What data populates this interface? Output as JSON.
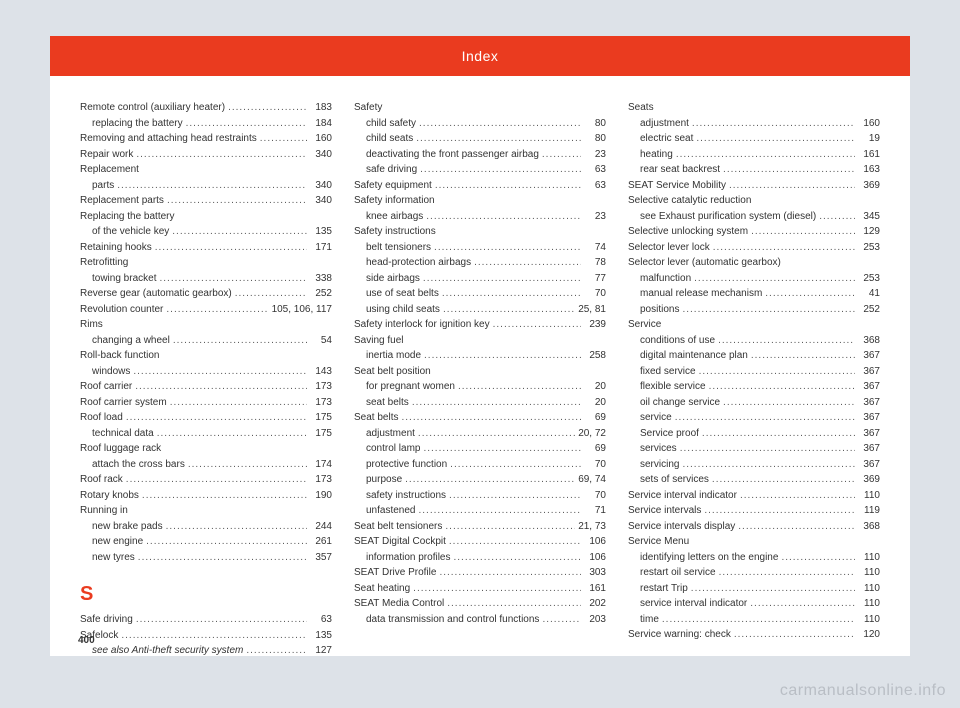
{
  "header": {
    "title": "Index"
  },
  "pagenum": "400",
  "watermark": "carmanualsonline.info",
  "section_s": "S",
  "columns": [
    [
      {
        "t": "e",
        "l": "Remote control (auxiliary heater)",
        "p": "183"
      },
      {
        "t": "s",
        "l": "replacing the battery",
        "p": "184"
      },
      {
        "t": "e",
        "l": "Removing and attaching head restraints",
        "p": "160"
      },
      {
        "t": "e",
        "l": "Repair work",
        "p": "340"
      },
      {
        "t": "h",
        "l": "Replacement"
      },
      {
        "t": "s",
        "l": "parts",
        "p": "340"
      },
      {
        "t": "e",
        "l": "Replacement parts",
        "p": "340"
      },
      {
        "t": "h",
        "l": "Replacing the battery"
      },
      {
        "t": "s",
        "l": "of the vehicle key",
        "p": "135"
      },
      {
        "t": "e",
        "l": "Retaining hooks",
        "p": "171"
      },
      {
        "t": "h",
        "l": "Retrofitting"
      },
      {
        "t": "s",
        "l": "towing bracket",
        "p": "338"
      },
      {
        "t": "e",
        "l": "Reverse gear (automatic gearbox)",
        "p": "252"
      },
      {
        "t": "e",
        "l": "Revolution counter",
        "p": "105, 106, 117"
      },
      {
        "t": "h",
        "l": "Rims"
      },
      {
        "t": "s",
        "l": "changing a wheel",
        "p": "54"
      },
      {
        "t": "h",
        "l": "Roll-back function"
      },
      {
        "t": "s",
        "l": "windows",
        "p": "143"
      },
      {
        "t": "e",
        "l": "Roof carrier",
        "p": "173"
      },
      {
        "t": "e",
        "l": "Roof carrier system",
        "p": "173"
      },
      {
        "t": "e",
        "l": "Roof load",
        "p": "175"
      },
      {
        "t": "s",
        "l": "technical data",
        "p": "175"
      },
      {
        "t": "h",
        "l": "Roof luggage rack"
      },
      {
        "t": "s",
        "l": "attach the cross bars",
        "p": "174"
      },
      {
        "t": "e",
        "l": "Roof rack",
        "p": "173"
      },
      {
        "t": "e",
        "l": "Rotary knobs",
        "p": "190"
      },
      {
        "t": "h",
        "l": "Running in"
      },
      {
        "t": "s",
        "l": "new brake pads",
        "p": "244"
      },
      {
        "t": "s",
        "l": "new engine",
        "p": "261"
      },
      {
        "t": "s",
        "l": "new tyres",
        "p": "357"
      },
      {
        "t": "sec"
      },
      {
        "t": "e",
        "l": "Safe driving",
        "p": "63"
      },
      {
        "t": "e",
        "l": "Safelock",
        "p": "135"
      },
      {
        "t": "si",
        "l": "see also Anti-theft security system",
        "p": "127"
      }
    ],
    [
      {
        "t": "h",
        "l": "Safety"
      },
      {
        "t": "s",
        "l": "child safety",
        "p": "80"
      },
      {
        "t": "s",
        "l": "child seats",
        "p": "80"
      },
      {
        "t": "s",
        "l": "deactivating the front passenger airbag",
        "p": "23"
      },
      {
        "t": "s",
        "l": "safe driving",
        "p": "63"
      },
      {
        "t": "e",
        "l": "Safety equipment",
        "p": "63"
      },
      {
        "t": "h",
        "l": "Safety information"
      },
      {
        "t": "s",
        "l": "knee airbags",
        "p": "23"
      },
      {
        "t": "h",
        "l": "Safety instructions"
      },
      {
        "t": "s",
        "l": "belt tensioners",
        "p": "74"
      },
      {
        "t": "s",
        "l": "head-protection airbags",
        "p": "78"
      },
      {
        "t": "s",
        "l": "side airbags",
        "p": "77"
      },
      {
        "t": "s",
        "l": "use of seat belts",
        "p": "70"
      },
      {
        "t": "s",
        "l": "using child seats",
        "p": "25, 81"
      },
      {
        "t": "e",
        "l": "Safety interlock for ignition key",
        "p": "239"
      },
      {
        "t": "h",
        "l": "Saving fuel"
      },
      {
        "t": "s",
        "l": "inertia mode",
        "p": "258"
      },
      {
        "t": "h",
        "l": "Seat belt position"
      },
      {
        "t": "s",
        "l": "for pregnant women",
        "p": "20"
      },
      {
        "t": "s",
        "l": "seat belts",
        "p": "20"
      },
      {
        "t": "e",
        "l": "Seat belts",
        "p": "69"
      },
      {
        "t": "s",
        "l": "adjustment",
        "p": "20, 72"
      },
      {
        "t": "s",
        "l": "control lamp",
        "p": "69"
      },
      {
        "t": "s",
        "l": "protective function",
        "p": "70"
      },
      {
        "t": "s",
        "l": "purpose",
        "p": "69, 74"
      },
      {
        "t": "s",
        "l": "safety instructions",
        "p": "70"
      },
      {
        "t": "s",
        "l": "unfastened",
        "p": "71"
      },
      {
        "t": "e",
        "l": "Seat belt tensioners",
        "p": "21, 73"
      },
      {
        "t": "e",
        "l": "SEAT Digital Cockpit",
        "p": "106"
      },
      {
        "t": "s",
        "l": "information profiles",
        "p": "106"
      },
      {
        "t": "e",
        "l": "SEAT Drive Profile",
        "p": "303"
      },
      {
        "t": "e",
        "l": "Seat heating",
        "p": "161"
      },
      {
        "t": "e",
        "l": "SEAT Media Control",
        "p": "202"
      },
      {
        "t": "s",
        "l": "data transmission and control functions",
        "p": "203"
      }
    ],
    [
      {
        "t": "h",
        "l": "Seats"
      },
      {
        "t": "s",
        "l": "adjustment",
        "p": "160"
      },
      {
        "t": "s",
        "l": "electric seat",
        "p": "19"
      },
      {
        "t": "s",
        "l": "heating",
        "p": "161"
      },
      {
        "t": "s",
        "l": "rear seat backrest",
        "p": "163"
      },
      {
        "t": "e",
        "l": "SEAT Service Mobility",
        "p": "369"
      },
      {
        "t": "h",
        "l": "Selective catalytic reduction"
      },
      {
        "t": "s",
        "l": "see Exhaust purification system (diesel)",
        "p": "345"
      },
      {
        "t": "e",
        "l": "Selective unlocking system",
        "p": "129"
      },
      {
        "t": "e",
        "l": "Selector lever lock",
        "p": "253"
      },
      {
        "t": "h",
        "l": "Selector lever (automatic gearbox)"
      },
      {
        "t": "s",
        "l": "malfunction",
        "p": "253"
      },
      {
        "t": "s",
        "l": "manual release mechanism",
        "p": "41"
      },
      {
        "t": "s",
        "l": "positions",
        "p": "252"
      },
      {
        "t": "h",
        "l": "Service"
      },
      {
        "t": "s",
        "l": "conditions of use",
        "p": "368"
      },
      {
        "t": "s",
        "l": "digital maintenance plan",
        "p": "367"
      },
      {
        "t": "s",
        "l": "fixed service",
        "p": "367"
      },
      {
        "t": "s",
        "l": "flexible service",
        "p": "367"
      },
      {
        "t": "s",
        "l": "oil change service",
        "p": "367"
      },
      {
        "t": "s",
        "l": "service",
        "p": "367"
      },
      {
        "t": "s",
        "l": "Service proof",
        "p": "367"
      },
      {
        "t": "s",
        "l": "services",
        "p": "367"
      },
      {
        "t": "s",
        "l": "servicing",
        "p": "367"
      },
      {
        "t": "s",
        "l": "sets of services",
        "p": "369"
      },
      {
        "t": "e",
        "l": "Service interval indicator",
        "p": "110"
      },
      {
        "t": "e",
        "l": "Service intervals",
        "p": "119"
      },
      {
        "t": "e",
        "l": "Service intervals display",
        "p": "368"
      },
      {
        "t": "h",
        "l": "Service Menu"
      },
      {
        "t": "s",
        "l": "identifying letters on the engine",
        "p": "110"
      },
      {
        "t": "s",
        "l": "restart oil service",
        "p": "110"
      },
      {
        "t": "s",
        "l": "restart Trip",
        "p": "110"
      },
      {
        "t": "s",
        "l": "service interval indicator",
        "p": "110"
      },
      {
        "t": "s",
        "l": "time",
        "p": "110"
      },
      {
        "t": "e",
        "l": "Service warning: check",
        "p": "120"
      }
    ]
  ]
}
